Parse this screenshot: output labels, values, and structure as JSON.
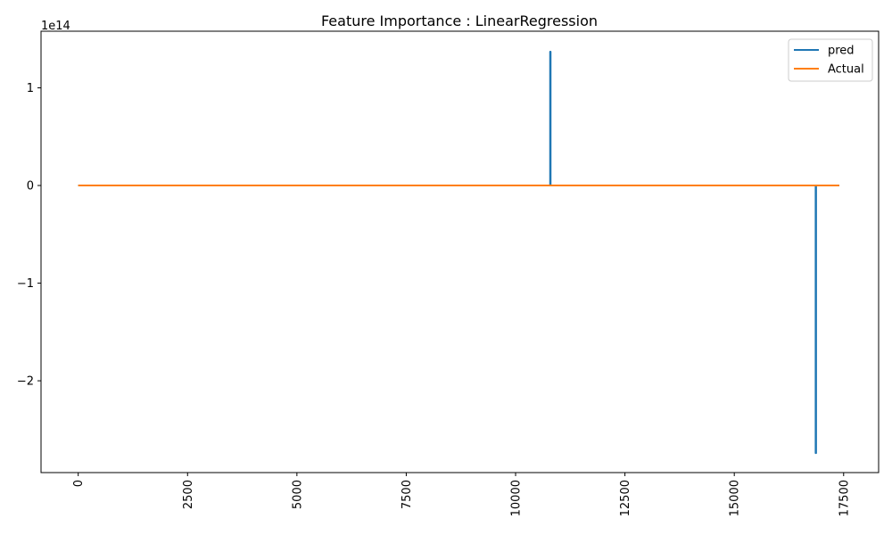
{
  "chart_data": {
    "type": "line",
    "title": "Feature Importance : LinearRegression",
    "xlabel": "",
    "ylabel": "",
    "y_offset_label": "1e14",
    "xlim": [
      -850,
      18300
    ],
    "ylim": [
      -2.94,
      1.58
    ],
    "x_ticks": [
      0,
      2500,
      5000,
      7500,
      10000,
      12500,
      15000,
      17500
    ],
    "x_tick_labels": [
      "0",
      "2500",
      "5000",
      "7500",
      "10000",
      "12500",
      "15000",
      "17500"
    ],
    "y_ticks": [
      1,
      0,
      -1,
      -2
    ],
    "y_tick_labels": [
      "1",
      "0",
      "−1",
      "−2"
    ],
    "x_tick_rotation": 90,
    "grid": false,
    "legend_position": "top-right",
    "series": [
      {
        "name": "pred",
        "color": "#1f77b4",
        "x": [
          0,
          10790,
          10790,
          10800,
          10800,
          16860,
          16860,
          16870,
          16870,
          17400
        ],
        "y": [
          0,
          0,
          1.37,
          1.37,
          0,
          0,
          -2.74,
          -2.74,
          0,
          0
        ]
      },
      {
        "name": "Actual",
        "color": "#ff7f0e",
        "x": [
          0,
          17400
        ],
        "y": [
          0,
          0
        ]
      }
    ]
  }
}
